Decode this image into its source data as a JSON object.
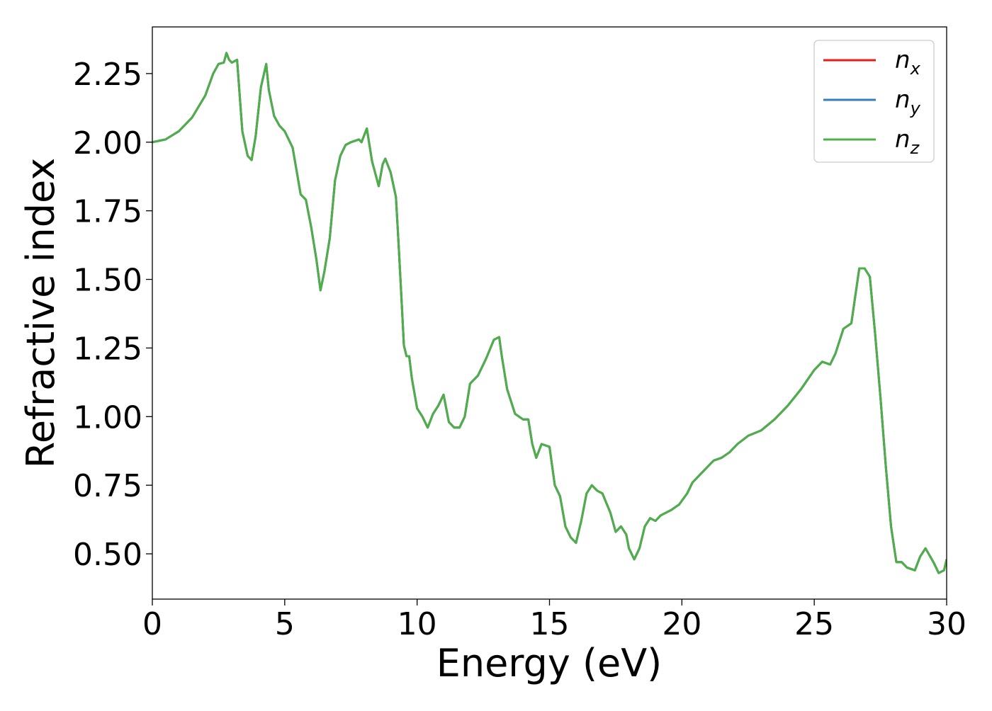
{
  "chart_data": {
    "type": "line",
    "xlabel": "Energy (eV)",
    "ylabel": "Refractive index",
    "xlim": [
      0,
      30
    ],
    "ylim": [
      0.335,
      2.42
    ],
    "xticks": [
      0,
      5,
      10,
      15,
      20,
      25,
      30
    ],
    "xtick_labels": [
      "0",
      "5",
      "10",
      "15",
      "20",
      "25",
      "30"
    ],
    "yticks": [
      0.5,
      0.75,
      1.0,
      1.25,
      1.5,
      1.75,
      2.0,
      2.25
    ],
    "ytick_labels": [
      "0.50",
      "0.75",
      "1.00",
      "1.25",
      "1.50",
      "1.75",
      "2.00",
      "2.25"
    ],
    "grid": false,
    "legend_position": "top-right",
    "series": [
      {
        "name": "n",
        "subscript": "x",
        "color": "#e41a1c"
      },
      {
        "name": "n",
        "subscript": "y",
        "color": "#377eb8"
      },
      {
        "name": "n",
        "subscript": "z",
        "color": "#4daf4a"
      }
    ],
    "x": [
      0,
      0.5,
      1.0,
      1.5,
      2.0,
      2.3,
      2.5,
      2.7,
      2.8,
      2.9,
      3.0,
      3.2,
      3.4,
      3.6,
      3.75,
      3.9,
      4.1,
      4.3,
      4.4,
      4.6,
      4.8,
      5.0,
      5.3,
      5.6,
      5.8,
      6.0,
      6.2,
      6.35,
      6.5,
      6.7,
      6.9,
      7.1,
      7.3,
      7.5,
      7.8,
      7.9,
      8.1,
      8.3,
      8.55,
      8.7,
      8.8,
      9.0,
      9.2,
      9.3,
      9.4,
      9.5,
      9.6,
      9.7,
      9.8,
      10.0,
      10.2,
      10.4,
      10.6,
      10.8,
      11.0,
      11.2,
      11.4,
      11.6,
      11.8,
      12.0,
      12.3,
      12.6,
      12.9,
      13.1,
      13.2,
      13.4,
      13.7,
      14.0,
      14.2,
      14.35,
      14.5,
      14.7,
      15.0,
      15.2,
      15.4,
      15.6,
      15.8,
      16.0,
      16.2,
      16.4,
      16.6,
      16.8,
      17.0,
      17.3,
      17.5,
      17.7,
      17.9,
      18.0,
      18.2,
      18.4,
      18.6,
      18.8,
      19.0,
      19.2,
      19.4,
      19.6,
      19.9,
      20.2,
      20.4,
      20.6,
      20.8,
      21.0,
      21.2,
      21.5,
      21.8,
      22.1,
      22.5,
      23.0,
      23.5,
      24.0,
      24.5,
      25.0,
      25.3,
      25.6,
      25.8,
      26.1,
      26.4,
      26.7,
      26.9,
      27.1,
      27.3,
      27.5,
      27.7,
      27.9,
      28.1,
      28.3,
      28.5,
      28.8,
      29.0,
      29.2,
      29.5,
      29.7,
      29.9,
      30.0
    ],
    "y": [
      2.0,
      2.01,
      2.04,
      2.09,
      2.17,
      2.25,
      2.285,
      2.29,
      2.325,
      2.3,
      2.29,
      2.3,
      2.04,
      1.95,
      1.935,
      2.02,
      2.2,
      2.285,
      2.19,
      2.095,
      2.06,
      2.04,
      1.98,
      1.81,
      1.79,
      1.69,
      1.57,
      1.46,
      1.53,
      1.65,
      1.86,
      1.95,
      1.99,
      2.0,
      2.01,
      2.0,
      2.05,
      1.93,
      1.84,
      1.92,
      1.94,
      1.89,
      1.8,
      1.63,
      1.45,
      1.26,
      1.22,
      1.22,
      1.14,
      1.03,
      1.0,
      0.96,
      1.01,
      1.04,
      1.08,
      0.98,
      0.96,
      0.96,
      1.0,
      1.12,
      1.15,
      1.21,
      1.28,
      1.29,
      1.22,
      1.1,
      1.01,
      0.99,
      0.99,
      0.9,
      0.85,
      0.9,
      0.89,
      0.75,
      0.71,
      0.6,
      0.56,
      0.54,
      0.62,
      0.72,
      0.75,
      0.73,
      0.72,
      0.65,
      0.58,
      0.6,
      0.57,
      0.52,
      0.48,
      0.52,
      0.6,
      0.63,
      0.62,
      0.64,
      0.65,
      0.66,
      0.68,
      0.72,
      0.76,
      0.78,
      0.8,
      0.82,
      0.84,
      0.85,
      0.87,
      0.9,
      0.93,
      0.95,
      0.99,
      1.04,
      1.1,
      1.17,
      1.2,
      1.19,
      1.23,
      1.32,
      1.34,
      1.54,
      1.54,
      1.51,
      1.3,
      1.07,
      0.82,
      0.6,
      0.47,
      0.47,
      0.45,
      0.44,
      0.49,
      0.52,
      0.47,
      0.43,
      0.44,
      0.48
    ]
  }
}
